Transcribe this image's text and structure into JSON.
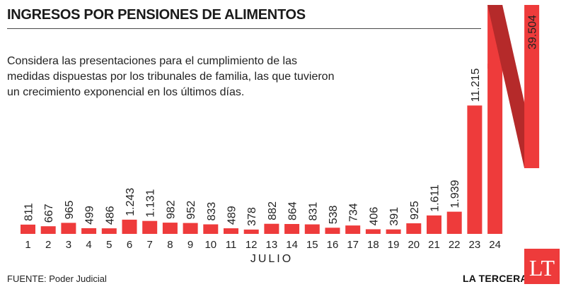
{
  "header": {
    "title": "INGRESOS POR PENSIONES DE ALIMENTOS",
    "subtitle": "Considera las presentaciones para el cumplimiento de las medidas dispuestas por los tribunales de familia, las que tuvieron un crecimiento exponencial en los últimos días."
  },
  "chart_data": {
    "type": "bar",
    "categories": [
      "1",
      "2",
      "3",
      "4",
      "5",
      "6",
      "7",
      "8",
      "9",
      "10",
      "11",
      "12",
      "13",
      "14",
      "15",
      "16",
      "17",
      "18",
      "19",
      "20",
      "21",
      "22",
      "23",
      "24"
    ],
    "values": [
      811,
      667,
      965,
      499,
      486,
      1243,
      1131,
      982,
      952,
      833,
      489,
      378,
      882,
      864,
      831,
      538,
      734,
      406,
      391,
      925,
      1611,
      1939,
      11215,
      39504
    ],
    "value_labels": [
      "811",
      "667",
      "965",
      "499",
      "486",
      "1.243",
      "1.131",
      "982",
      "952",
      "833",
      "489",
      "378",
      "882",
      "864",
      "831",
      "538",
      "734",
      "406",
      "391",
      "925",
      "1.611",
      "1.939",
      "11.215",
      "39.504"
    ],
    "xlabel": "JULIO",
    "ylabel": "",
    "title": "INGRESOS POR PENSIONES DE ALIMENTOS",
    "colors": {
      "bar": "#ee3b3b",
      "break": "#b52a2a"
    },
    "broken_bar_index": 23,
    "grid": false
  },
  "footer": {
    "source": "FUENTE: Poder Judicial",
    "brand": "LA TERCERA",
    "logo_text": "LT"
  }
}
